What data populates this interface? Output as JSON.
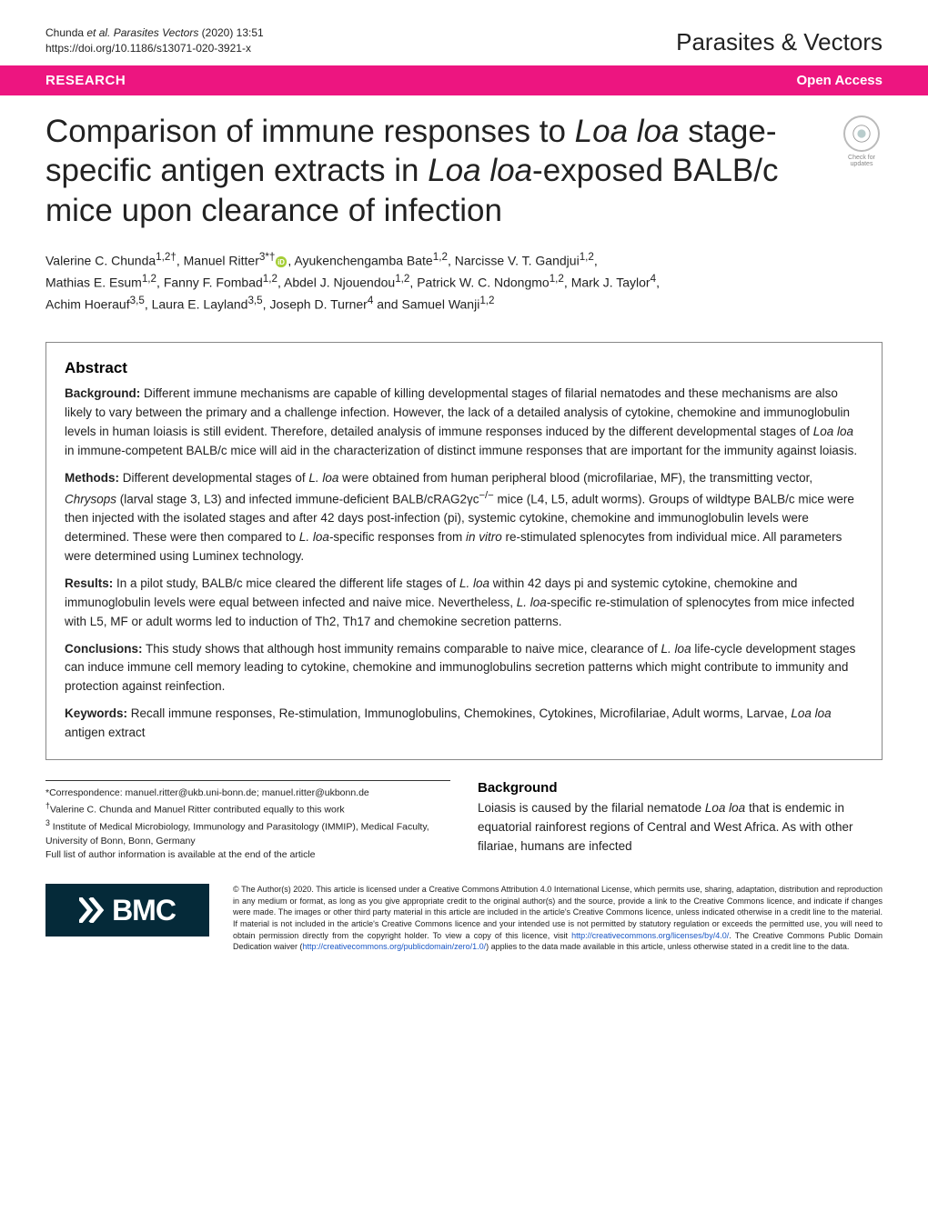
{
  "header": {
    "refLine1": "Chunda ",
    "refItalic": "et al. Parasites Vectors",
    "refTail": "     (2020) 13:51",
    "doi": "https://doi.org/10.1186/s13071-020-3921-x",
    "journalTitle": "Parasites & Vectors"
  },
  "pinkbar": {
    "left": "RESEARCH",
    "right": "Open Access"
  },
  "article": {
    "titleParts": [
      {
        "t": "Comparison of immune responses to ",
        "i": false
      },
      {
        "t": "Loa loa",
        "i": true
      },
      {
        "t": " stage-specific antigen extracts in ",
        "i": false
      },
      {
        "t": "Loa loa",
        "i": true
      },
      {
        "t": "-exposed BALB/c mice upon clearance of infection",
        "i": false
      }
    ]
  },
  "crossmark": {
    "line1": "Check for",
    "line2": "updates"
  },
  "authors": {
    "line1_a": "Valerine C. Chunda",
    "line1_a_sup": "1,2†",
    "line1_b": ", Manuel Ritter",
    "line1_b_sup": "3*†",
    "line1_c": ", Ayukenchengamba Bate",
    "line1_c_sup": "1,2",
    "line1_d": ", Narcisse V. T. Gandjui",
    "line1_d_sup": "1,2",
    "line1_e": ",",
    "line2_a": "Mathias E. Esum",
    "line2_a_sup": "1,2",
    "line2_b": ", Fanny F. Fombad",
    "line2_b_sup": "1,2",
    "line2_c": ", Abdel J. Njouendou",
    "line2_c_sup": "1,2",
    "line2_d": ", Patrick W. C. Ndongmo",
    "line2_d_sup": "1,2",
    "line2_e": ", Mark J. Taylor",
    "line2_e_sup": "4",
    "line2_f": ",",
    "line3_a": "Achim Hoerauf",
    "line3_a_sup": "3,5",
    "line3_b": ", Laura E. Layland",
    "line3_b_sup": "3,5",
    "line3_c": ", Joseph D. Turner",
    "line3_c_sup": "4",
    "line3_d": " and Samuel Wanji",
    "line3_d_sup": "1,2"
  },
  "abstract": {
    "heading": "Abstract",
    "background": {
      "label": "Background:",
      "text": " Different immune mechanisms are capable of killing developmental stages of filarial nematodes and these mechanisms are also likely to vary between the primary and a challenge infection. However, the lack of a detailed analysis of cytokine, chemokine and immunoglobulin levels in human loiasis is still evident. Therefore, detailed analysis of immune responses induced by the different developmental stages of ",
      "italic1": "Loa loa",
      "text2": " in immune-competent BALB/c mice will aid in the characterization of distinct immune responses that are important for the immunity against loiasis."
    },
    "methods": {
      "label": "Methods:",
      "text": " Different developmental stages of ",
      "italic1": "L. loa",
      "text2": " were obtained from human peripheral blood (microfilariae, MF), the transmitting vector, ",
      "italic2": "Chrysops",
      "text3": " (larval stage 3, L3) and infected immune-deficient BALB/cRAG2γc",
      "sup1": "−/−",
      "text4": " mice (L4, L5, adult worms). Groups of wildtype BALB/c mice were then injected with the isolated stages and after 42 days post-infection (pi), systemic cytokine, chemokine and immunoglobulin levels were determined. These were then compared to ",
      "italic3": "L. loa",
      "text5": "-specific responses from ",
      "italic4": "in vitro",
      "text6": " re-stimulated splenocytes from individual mice. All parameters were determined using Luminex technology."
    },
    "results": {
      "label": "Results:",
      "text": " In a pilot study, BALB/c mice cleared the different life stages of ",
      "italic1": "L. loa",
      "text2": " within 42 days pi and systemic cytokine, chemokine and immunoglobulin levels were equal between infected and naive mice. Nevertheless, ",
      "italic2": "L. loa",
      "text3": "-specific re-stimulation of splenocytes from mice infected with L5, MF or adult worms led to induction of Th2, Th17 and chemokine secretion patterns."
    },
    "conclusions": {
      "label": "Conclusions:",
      "text": " This study shows that although host immunity remains comparable to naive mice, clearance of ",
      "italic1": "L. loa",
      "text2": " life-cycle development stages can induce immune cell memory leading to cytokine, chemokine and immunoglobulins secretion patterns which might contribute to immunity and protection against reinfection."
    },
    "keywords": {
      "label": "Keywords:",
      "text": " Recall immune responses, Re-stimulation, Immunoglobulins, Chemokines, Cytokines, Microfilariae, Adult worms, Larvae, ",
      "italic1": "Loa loa",
      "text2": " antigen extract"
    }
  },
  "correspondence": {
    "line1": "*Correspondence:  manuel.ritter@ukb.uni-bonn.de; manuel.ritter@ukbonn.de",
    "line2_sup": "†",
    "line2": "Valerine C. Chunda and Manuel Ritter contributed equally to this work",
    "line3_sup": "3",
    "line3": " Institute of Medical Microbiology, Immunology and Parasitology (IMMIP), Medical Faculty, University of Bonn, Bonn, Germany",
    "line4": "Full list of author information is available at the end of the article"
  },
  "backgroundSection": {
    "heading": "Background",
    "text1": "Loiasis is caused by the filarial nematode ",
    "italic1": "Loa loa",
    "text2": " that is endemic in equatorial rainforest regions of Central and West Africa. As with other filariae, humans are infected"
  },
  "bmc": {
    "text": "BMC"
  },
  "license": {
    "text1": "© The Author(s) 2020. This article is licensed under a Creative Commons Attribution 4.0 International License, which permits use, sharing, adaptation, distribution and reproduction in any medium or format, as long as you give appropriate credit to the original author(s) and the source, provide a link to the Creative Commons licence, and indicate if changes were made. The images or other third party material in this article are included in the article's Creative Commons licence, unless indicated otherwise in a credit line to the material. If material is not included in the article's Creative Commons licence and your intended use is not permitted by statutory regulation or exceeds the permitted use, you will need to obtain permission directly from the copyright holder. To view a copy of this licence, visit ",
    "link1": "http://creativecommons.org/licenses/by/4.0/",
    "text2": ". The Creative Commons Public Domain Dedication waiver (",
    "link2": "http://creativecommons.org/publicdomain/zero/1.0/",
    "text3": ") applies to the data made available in this article, unless otherwise stated in a credit line to the data."
  }
}
